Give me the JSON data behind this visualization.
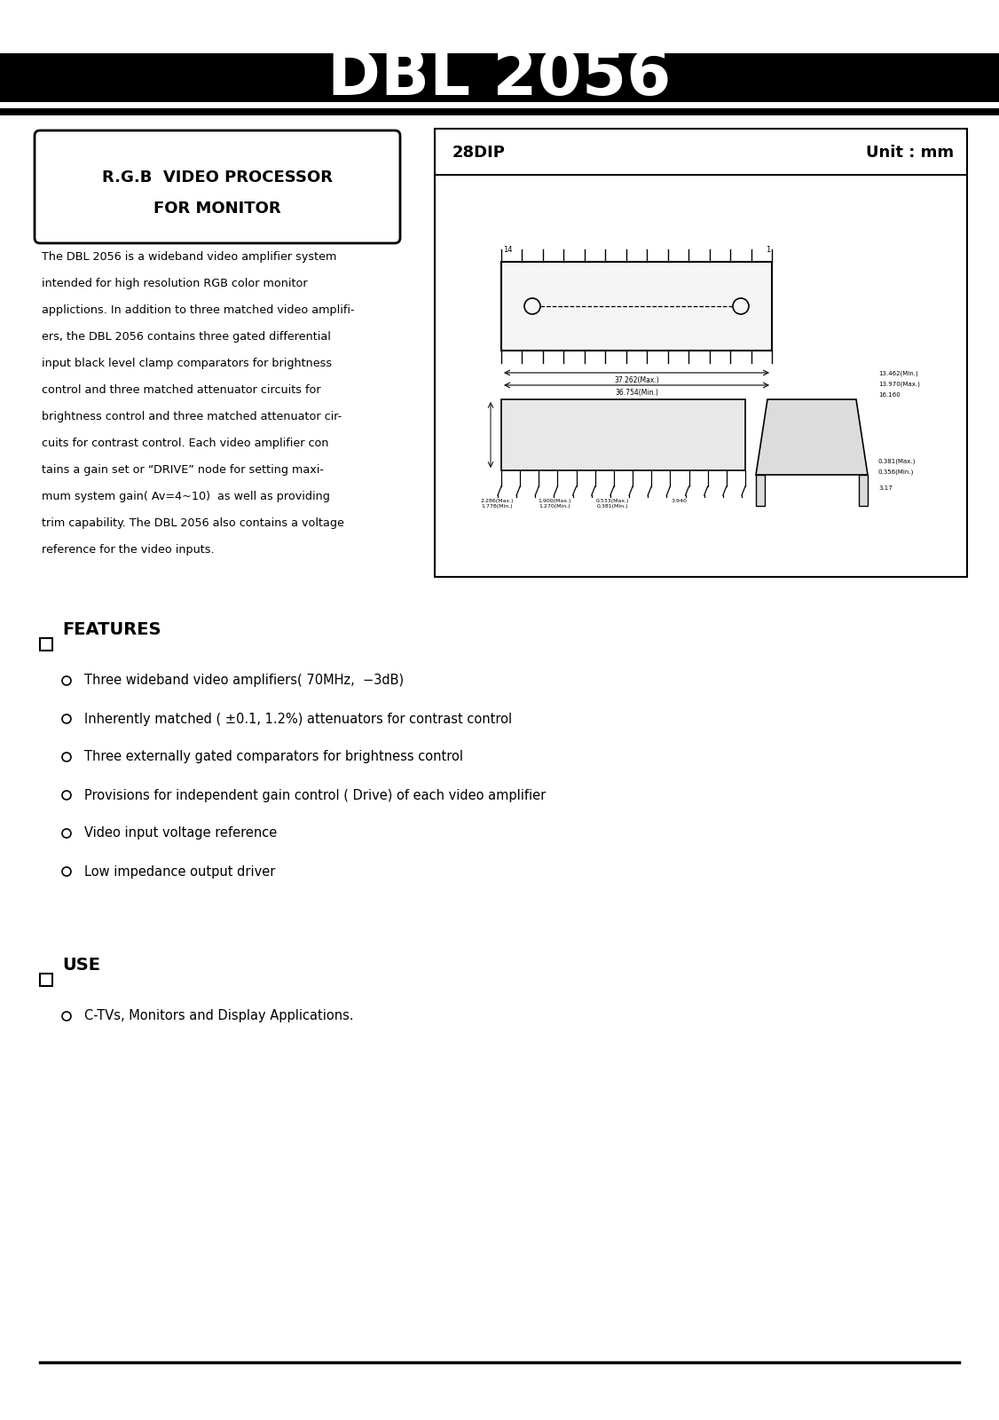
{
  "title": "DBL 2056",
  "bg_color": "#ffffff",
  "header_bar_color": "#000000",
  "left_box_title_line1": "R.G.B  VIDEO PROCESSOR",
  "left_box_title_line2": "FOR MONITOR",
  "right_box_label1": "28DIP",
  "right_box_label2": "Unit : mm",
  "desc_lines": [
    "The DBL 2056 is a wideband video amplifier system",
    "intended for high resolution RGB color monitor",
    "applictions. In addition to three matched video amplifi-",
    "ers, the DBL 2056 contains three gated differential",
    "input black level clamp comparators for brightness",
    "control and three matched attenuator circuits for",
    "brightness control and three matched attenuator cir-",
    "cuits for contrast control. Each video amplifier con",
    "tains a gain set or “DRIVE” node for setting maxi-",
    "mum system gain( Av=4~10)  as well as providing",
    "trim capability. The DBL 2056 also contains a voltage",
    "reference for the video inputs."
  ],
  "features_label": "FEATURES",
  "features": [
    "Three wideband video amplifiers( 70MHz,  −3dB)",
    "Inherently matched ( ±0.1, 1.2%) attenuators for contrast control",
    "Three externally gated comparators for brightness control",
    "Provisions for independent gain control ( Drive) of each video amplifier",
    "Video input voltage reference",
    "Low impedance output driver"
  ],
  "use_label": "USE",
  "use_items": [
    "C-TVs, Monitors and Display Applications."
  ]
}
